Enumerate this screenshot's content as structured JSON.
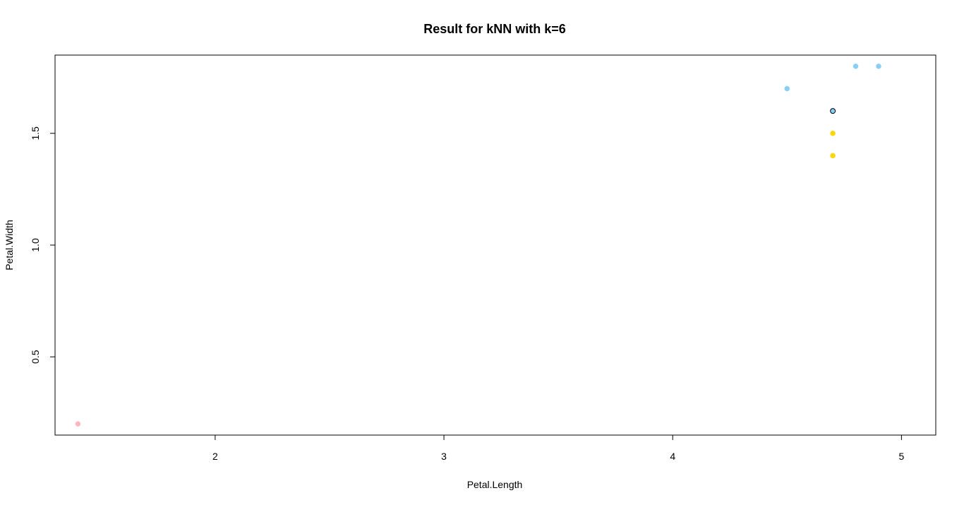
{
  "chart_data": {
    "type": "scatter",
    "title": "Result for kNN with k=6",
    "xlabel": "Petal.Length",
    "ylabel": "Petal.Width",
    "xlim": [
      1.3,
      5.15
    ],
    "ylim": [
      0.15,
      1.85
    ],
    "x_ticks": [
      2,
      3,
      4,
      5
    ],
    "x_tick_labels": [
      "2",
      "3",
      "4",
      "5"
    ],
    "y_ticks": [
      0.5,
      1.0,
      1.5
    ],
    "y_tick_labels": [
      "0.5",
      "1.0",
      "1.5"
    ],
    "grid": false,
    "legend": "none",
    "points": [
      {
        "x": 1.4,
        "y": 0.2,
        "color": "#ffb6c1"
      },
      {
        "x": 4.5,
        "y": 1.7,
        "color": "#87cefa"
      },
      {
        "x": 4.8,
        "y": 1.8,
        "color": "#87cefa"
      },
      {
        "x": 4.9,
        "y": 1.8,
        "color": "#87cefa"
      },
      {
        "x": 4.7,
        "y": 1.5,
        "color": "#ffd700"
      },
      {
        "x": 4.7,
        "y": 1.4,
        "color": "#ffd700"
      },
      {
        "x": 4.7,
        "y": 1.6,
        "color": "#87cefa",
        "outlined": true
      }
    ]
  }
}
